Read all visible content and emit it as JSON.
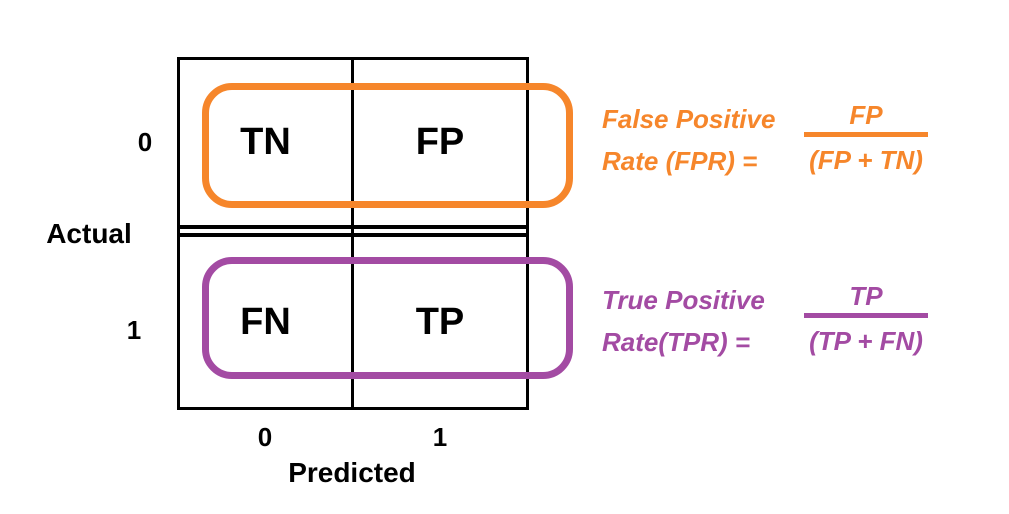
{
  "matrix": {
    "axis_y_label": "Actual",
    "axis_x_label": "Predicted",
    "row_labels": [
      "0",
      "1"
    ],
    "col_labels": [
      "0",
      "1"
    ],
    "cells": [
      [
        "TN",
        "FP"
      ],
      [
        "FN",
        "TP"
      ]
    ],
    "grid_color": "#000000"
  },
  "fpr": {
    "label_line1": "False Positive",
    "label_line2": "Rate (FPR) =",
    "numerator": "FP",
    "denominator": "(FP + TN)",
    "color": "#F6862B"
  },
  "tpr": {
    "label_line1": "True Positive",
    "label_line2": "Rate(TPR) =",
    "numerator": "TP",
    "denominator": "(TP + FN)",
    "color": "#A34BA3"
  }
}
